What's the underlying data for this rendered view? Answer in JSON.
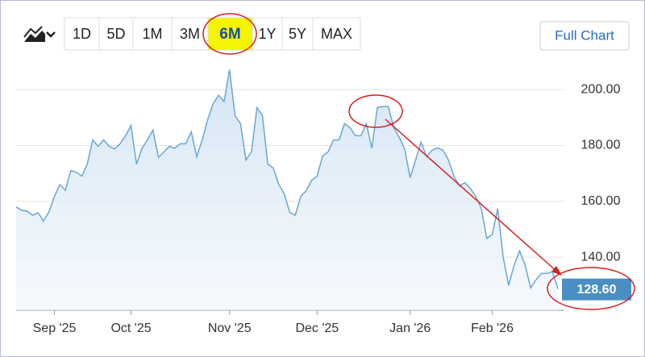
{
  "ranges": [
    "1D",
    "5D",
    "1M",
    "3M",
    "6M",
    "1Y",
    "5Y",
    "MAX"
  ],
  "active_range": "6M",
  "full_chart": "Full Chart",
  "chart_data": {
    "type": "area",
    "color": "#6aa6d6",
    "categories": [
      null,
      null,
      null,
      null,
      null,
      null,
      null,
      "Sep '25",
      null,
      null,
      null,
      null,
      null,
      null,
      null,
      null,
      null,
      null,
      null,
      null,
      null,
      "Oct '25",
      null,
      null,
      null,
      null,
      null,
      null,
      null,
      null,
      null,
      null,
      null,
      null,
      null,
      null,
      null,
      null,
      null,
      "Nov '25",
      null,
      null,
      null,
      null,
      null,
      null,
      null,
      null,
      null,
      null,
      null,
      null,
      null,
      null,
      null,
      "Dec '25",
      null,
      null,
      null,
      null,
      null,
      null,
      null,
      null,
      null,
      null,
      null,
      null,
      null,
      null,
      null,
      null,
      "Jan '26",
      null,
      null,
      null,
      null,
      null,
      null,
      null,
      null,
      null,
      null,
      null,
      null,
      null,
      null,
      "Feb '26",
      null,
      null,
      null,
      null,
      null,
      null,
      null,
      null,
      null,
      null,
      null,
      null
    ],
    "values": [
      158,
      156.8,
      156.5,
      155,
      155.9,
      153,
      156.2,
      161.7,
      166,
      164,
      171,
      170.4,
      169,
      173.3,
      182,
      179.7,
      182,
      179.7,
      178.8,
      180.6,
      183.5,
      187.2,
      173.3,
      179,
      182,
      185.5,
      175.7,
      177.7,
      179.7,
      179,
      180.6,
      180.6,
      184.9,
      176,
      182,
      189.3,
      195,
      198,
      195.7,
      207.2,
      190.7,
      187.8,
      174.8,
      177.7,
      193.6,
      190.7,
      173.3,
      171.9,
      166,
      162.6,
      156,
      155,
      161.7,
      163.8,
      167.5,
      169,
      176.2,
      177.7,
      182,
      182,
      187.8,
      186.4,
      183.5,
      183.5,
      187.8,
      179,
      193.6,
      193.9,
      193.9,
      186.4,
      182.9,
      178.8,
      168.4,
      174.8,
      181.2,
      176,
      178.3,
      179.1,
      178.3,
      174.8,
      169,
      165.5,
      166.7,
      164.6,
      161.7,
      157.4,
      146.7,
      148.1,
      157.4,
      140,
      129.9,
      137.2,
      142.3,
      137.2,
      129,
      131.9,
      134.2,
      134.2,
      134.8,
      128.6
    ],
    "value_labels": [
      null,
      null,
      null,
      null,
      null,
      null,
      null,
      null,
      null,
      null,
      null,
      null,
      null,
      null,
      null,
      null,
      null,
      null,
      null,
      null,
      null,
      null,
      null,
      null,
      null,
      null,
      null,
      null,
      null,
      null,
      null,
      null,
      null,
      null,
      null,
      null,
      null,
      null,
      null,
      null,
      null,
      null,
      null,
      null,
      null,
      null,
      null,
      null,
      null,
      null,
      null,
      null,
      null,
      null,
      null,
      null,
      null,
      null,
      null,
      null,
      null,
      null,
      null,
      null,
      null,
      null,
      null,
      null,
      null,
      null,
      null,
      null,
      null,
      null,
      null,
      null,
      null,
      null,
      null,
      null,
      null,
      null,
      null,
      null,
      null,
      null,
      null,
      null,
      null,
      null,
      null,
      null,
      null,
      null,
      null,
      null,
      null,
      null,
      null,
      "128.60"
    ],
    "ylim": [
      121,
      209
    ],
    "yticks": [
      {
        "value": 140,
        "label": "140.00"
      },
      {
        "value": 160,
        "label": "160.00"
      },
      {
        "value": 180,
        "label": "180.00"
      },
      {
        "value": 200,
        "label": "200.00"
      }
    ],
    "grid": true
  }
}
